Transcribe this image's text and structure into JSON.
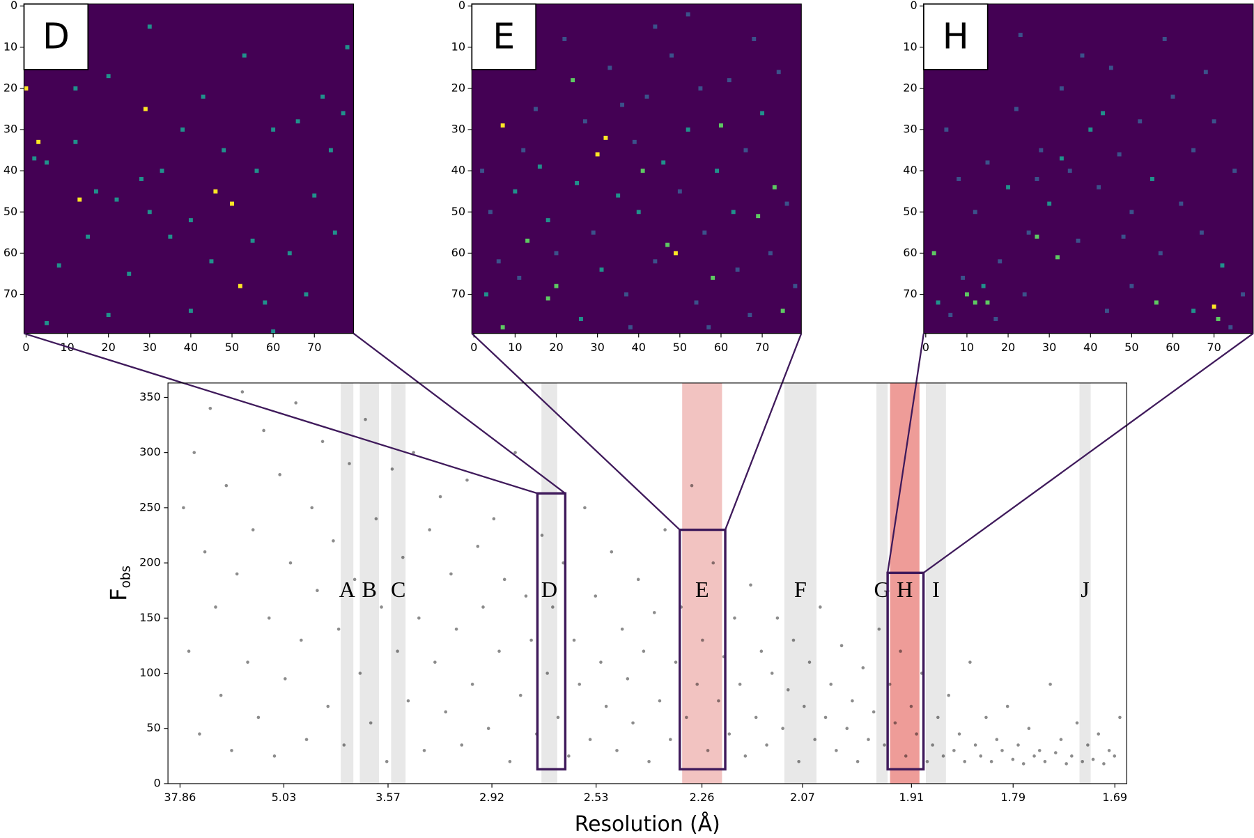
{
  "chart_data": [
    {
      "type": "heatmap",
      "label": "D",
      "xlim": [
        -0.5,
        79.5
      ],
      "ylim": [
        79.5,
        -0.5
      ],
      "xticks": [
        0,
        10,
        20,
        30,
        40,
        50,
        60,
        70
      ],
      "yticks": [
        0,
        10,
        20,
        30,
        40,
        50,
        60,
        70
      ],
      "vlim": [
        0,
        2
      ],
      "x": [
        0,
        3,
        29,
        13,
        46,
        50,
        52,
        2,
        5,
        12,
        17,
        22,
        28,
        30,
        35,
        40,
        45,
        56,
        60,
        66,
        72,
        74,
        77,
        70,
        75,
        64,
        58,
        40,
        20,
        8,
        12,
        20,
        30,
        53,
        60,
        38,
        48,
        25,
        15,
        68,
        5,
        55,
        33,
        43,
        78
      ],
      "y": [
        20,
        33,
        25,
        47,
        45,
        48,
        68,
        37,
        38,
        33,
        45,
        47,
        42,
        50,
        56,
        52,
        62,
        40,
        30,
        28,
        22,
        35,
        26,
        46,
        55,
        60,
        72,
        74,
        75,
        63,
        20,
        17,
        5,
        12,
        79,
        30,
        35,
        65,
        56,
        70,
        77,
        57,
        40,
        22,
        10
      ],
      "values": [
        2,
        2,
        2,
        2,
        2,
        2,
        2,
        1,
        1,
        1,
        1,
        1,
        1,
        1,
        1,
        1,
        1,
        1,
        1,
        1,
        1,
        1,
        1,
        1,
        1,
        1,
        1,
        1,
        1,
        1,
        1,
        1,
        1,
        1,
        1,
        1,
        1,
        1,
        1,
        1,
        1,
        1,
        1,
        1,
        1
      ]
    },
    {
      "type": "heatmap",
      "label": "E",
      "xlim": [
        -0.5,
        79.5
      ],
      "ylim": [
        79.5,
        -0.5
      ],
      "xticks": [
        0,
        10,
        20,
        30,
        40,
        50,
        60,
        70
      ],
      "yticks": [
        0,
        10,
        20,
        30,
        40,
        50,
        60,
        70
      ],
      "vlim": [
        0,
        4
      ],
      "x": [
        7,
        32,
        30,
        49,
        24,
        41,
        60,
        69,
        13,
        18,
        75,
        20,
        47,
        58,
        73,
        7,
        2,
        4,
        6,
        10,
        12,
        15,
        18,
        20,
        22,
        25,
        27,
        29,
        33,
        35,
        37,
        39,
        40,
        42,
        44,
        46,
        48,
        50,
        52,
        54,
        56,
        59,
        62,
        64,
        66,
        68,
        70,
        72,
        74,
        76,
        78,
        3,
        9,
        14,
        26,
        38,
        44,
        52,
        57,
        63,
        67,
        11,
        31,
        36,
        55,
        16
      ],
      "y": [
        29,
        32,
        36,
        60,
        18,
        40,
        29,
        51,
        57,
        71,
        74,
        68,
        58,
        66,
        44,
        78,
        40,
        50,
        62,
        45,
        35,
        25,
        52,
        60,
        8,
        43,
        28,
        55,
        15,
        46,
        70,
        33,
        50,
        22,
        62,
        38,
        12,
        45,
        30,
        72,
        55,
        40,
        18,
        64,
        35,
        8,
        26,
        60,
        16,
        48,
        68,
        70,
        15,
        5,
        76,
        78,
        5,
        2,
        78,
        50,
        75,
        66,
        64,
        24,
        20,
        39
      ],
      "values": [
        4,
        4,
        4,
        4,
        3,
        3,
        3,
        3,
        3,
        3,
        3,
        3,
        3,
        3,
        3,
        3,
        1,
        1,
        1,
        2,
        1,
        1,
        2,
        1,
        1,
        2,
        1,
        1,
        1,
        2,
        1,
        1,
        2,
        1,
        1,
        2,
        1,
        1,
        2,
        1,
        1,
        2,
        1,
        1,
        1,
        1,
        2,
        1,
        1,
        1,
        1,
        2,
        1,
        1,
        2,
        1,
        1,
        1,
        1,
        2,
        1,
        1,
        2,
        1,
        1,
        2
      ]
    },
    {
      "type": "heatmap",
      "label": "H",
      "xlim": [
        -0.5,
        79.5
      ],
      "ylim": [
        79.5,
        -0.5
      ],
      "xticks": [
        0,
        10,
        20,
        30,
        40,
        50,
        60,
        70
      ],
      "yticks": [
        0,
        10,
        20,
        30,
        40,
        50,
        60,
        70
      ],
      "vlim": [
        0,
        4
      ],
      "x": [
        70,
        10,
        12,
        27,
        32,
        56,
        71,
        2,
        15,
        5,
        8,
        12,
        15,
        18,
        20,
        22,
        25,
        28,
        30,
        33,
        35,
        37,
        40,
        42,
        45,
        47,
        50,
        52,
        55,
        57,
        60,
        62,
        65,
        67,
        70,
        72,
        75,
        77,
        3,
        6,
        9,
        14,
        17,
        24,
        44,
        50,
        65,
        74,
        38,
        23,
        58,
        68,
        43,
        33,
        27,
        48
      ],
      "y": [
        73,
        70,
        72,
        56,
        61,
        72,
        76,
        60,
        72,
        30,
        42,
        50,
        38,
        62,
        44,
        25,
        55,
        35,
        48,
        20,
        40,
        57,
        30,
        44,
        15,
        36,
        50,
        28,
        42,
        60,
        22,
        48,
        35,
        55,
        28,
        63,
        40,
        70,
        72,
        75,
        66,
        68,
        76,
        70,
        74,
        68,
        74,
        78,
        12,
        7,
        8,
        16,
        26,
        37,
        42,
        56
      ],
      "values": [
        4,
        3,
        3,
        3,
        3,
        3,
        3,
        3,
        3,
        1,
        1,
        1,
        1,
        1,
        2,
        1,
        1,
        1,
        2,
        1,
        1,
        1,
        2,
        1,
        1,
        1,
        1,
        1,
        2,
        1,
        1,
        1,
        1,
        1,
        1,
        2,
        1,
        1,
        2,
        1,
        1,
        2,
        1,
        1,
        1,
        1,
        2,
        1,
        1,
        1,
        1,
        1,
        2,
        2,
        1,
        1
      ]
    },
    {
      "type": "scatter",
      "x_label": "Resolution (Å)",
      "y_label": "F",
      "y_label_sub": "obs",
      "xlim": [
        -0.0038,
        0.3546
      ],
      "ylim": [
        0,
        363
      ],
      "xticks": [
        {
          "value": 0.000698,
          "label": "37.86"
        },
        {
          "value": 0.03952,
          "label": "5.03"
        },
        {
          "value": 0.07846,
          "label": "3.57"
        },
        {
          "value": 0.11728,
          "label": "2.92"
        },
        {
          "value": 0.15623,
          "label": "2.53"
        },
        {
          "value": 0.19579,
          "label": "2.26"
        },
        {
          "value": 0.23338,
          "label": "2.07"
        },
        {
          "value": 0.27411,
          "label": "1.91"
        },
        {
          "value": 0.3121,
          "label": "1.79"
        },
        {
          "value": 0.35013,
          "label": "1.69"
        }
      ],
      "yticks": [
        0,
        50,
        100,
        150,
        200,
        250,
        300,
        350
      ],
      "color": "#000000",
      "bands": [
        {
          "label": "A",
          "range": [
            0.0608,
            0.0655
          ],
          "color": "#e8e8e8"
        },
        {
          "label": "B",
          "range": [
            0.0679,
            0.0751
          ],
          "color": "#e8e8e8"
        },
        {
          "label": "C",
          "range": [
            0.0796,
            0.085
          ],
          "color": "#e8e8e8"
        },
        {
          "label": "D",
          "range": [
            0.1358,
            0.1417
          ],
          "color": "#e8e8e8"
        },
        {
          "label": "E",
          "range": [
            0.1884,
            0.2033
          ],
          "color": "#f2c3c1"
        },
        {
          "label": "F",
          "range": [
            0.2266,
            0.2386
          ],
          "color": "#e8e8e8"
        },
        {
          "label": "G",
          "range": [
            0.261,
            0.2652
          ],
          "color": "#e8e8e8"
        },
        {
          "label": "H",
          "range": [
            0.2661,
            0.2771
          ],
          "color": "#ee9c98"
        },
        {
          "label": "I",
          "range": [
            0.2795,
            0.287
          ],
          "color": "#e8e8e8"
        },
        {
          "label": "J",
          "range": [
            0.3369,
            0.3411
          ],
          "color": "#e8e8e8"
        }
      ],
      "boxes": [
        {
          "x": [
            0.1343,
            0.1447
          ],
          "y": [
            13,
            263
          ]
        },
        {
          "x": [
            0.1875,
            0.2045
          ],
          "y": [
            13,
            230
          ]
        },
        {
          "x": [
            0.2652,
            0.2786
          ],
          "y": [
            13,
            191
          ]
        }
      ],
      "x": [
        0.002,
        0.004,
        0.006,
        0.008,
        0.01,
        0.012,
        0.014,
        0.016,
        0.018,
        0.02,
        0.022,
        0.024,
        0.026,
        0.028,
        0.03,
        0.032,
        0.034,
        0.036,
        0.038,
        0.04,
        0.042,
        0.044,
        0.046,
        0.048,
        0.05,
        0.052,
        0.054,
        0.056,
        0.058,
        0.06,
        0.062,
        0.064,
        0.066,
        0.068,
        0.07,
        0.072,
        0.074,
        0.076,
        0.078,
        0.08,
        0.082,
        0.084,
        0.086,
        0.088,
        0.09,
        0.092,
        0.094,
        0.096,
        0.098,
        0.1,
        0.102,
        0.104,
        0.106,
        0.108,
        0.11,
        0.112,
        0.114,
        0.116,
        0.118,
        0.12,
        0.122,
        0.124,
        0.126,
        0.128,
        0.13,
        0.132,
        0.134,
        0.136,
        0.138,
        0.14,
        0.142,
        0.144,
        0.146,
        0.148,
        0.15,
        0.152,
        0.154,
        0.156,
        0.158,
        0.16,
        0.162,
        0.164,
        0.166,
        0.168,
        0.17,
        0.172,
        0.174,
        0.176,
        0.178,
        0.18,
        0.182,
        0.184,
        0.186,
        0.188,
        0.19,
        0.192,
        0.194,
        0.196,
        0.198,
        0.2,
        0.202,
        0.204,
        0.206,
        0.208,
        0.21,
        0.212,
        0.214,
        0.216,
        0.218,
        0.22,
        0.222,
        0.224,
        0.226,
        0.228,
        0.23,
        0.232,
        0.234,
        0.236,
        0.238,
        0.24,
        0.242,
        0.244,
        0.246,
        0.248,
        0.25,
        0.252,
        0.254,
        0.256,
        0.258,
        0.26,
        0.262,
        0.264,
        0.266,
        0.268,
        0.27,
        0.272,
        0.274,
        0.276,
        0.278,
        0.28,
        0.282,
        0.284,
        0.286,
        0.288,
        0.29,
        0.292,
        0.294,
        0.296,
        0.298,
        0.3,
        0.302,
        0.304,
        0.306,
        0.308,
        0.31,
        0.312,
        0.314,
        0.316,
        0.318,
        0.32,
        0.322,
        0.324,
        0.326,
        0.328,
        0.33,
        0.332,
        0.334,
        0.336,
        0.338,
        0.34,
        0.342,
        0.344,
        0.346,
        0.348,
        0.35,
        0.352
      ],
      "values": [
        250,
        120,
        300,
        45,
        210,
        340,
        160,
        80,
        270,
        30,
        190,
        355,
        110,
        230,
        60,
        320,
        150,
        25,
        280,
        95,
        200,
        345,
        130,
        40,
        250,
        175,
        310,
        70,
        220,
        140,
        35,
        290,
        185,
        100,
        330,
        55,
        240,
        160,
        20,
        285,
        120,
        205,
        75,
        300,
        150,
        30,
        230,
        110,
        260,
        65,
        190,
        140,
        35,
        275,
        90,
        215,
        160,
        50,
        240,
        120,
        185,
        20,
        300,
        80,
        170,
        130,
        45,
        225,
        100,
        160,
        60,
        200,
        25,
        130,
        90,
        250,
        40,
        170,
        110,
        70,
        210,
        30,
        140,
        95,
        55,
        185,
        120,
        20,
        155,
        75,
        230,
        40,
        110,
        160,
        60,
        270,
        90,
        130,
        30,
        200,
        75,
        115,
        45,
        150,
        90,
        25,
        180,
        60,
        120,
        35,
        100,
        150,
        50,
        85,
        130,
        20,
        70,
        110,
        40,
        160,
        60,
        90,
        30,
        125,
        50,
        75,
        20,
        105,
        40,
        65,
        140,
        35,
        90,
        55,
        120,
        25,
        70,
        45,
        100,
        20,
        35,
        60,
        25,
        80,
        30,
        45,
        20,
        110,
        35,
        25,
        60,
        20,
        40,
        30,
        70,
        22,
        35,
        18,
        50,
        25,
        30,
        20,
        90,
        28,
        40,
        18,
        25,
        55,
        20,
        35,
        22,
        45,
        18,
        30,
        25,
        60
      ]
    }
  ]
}
